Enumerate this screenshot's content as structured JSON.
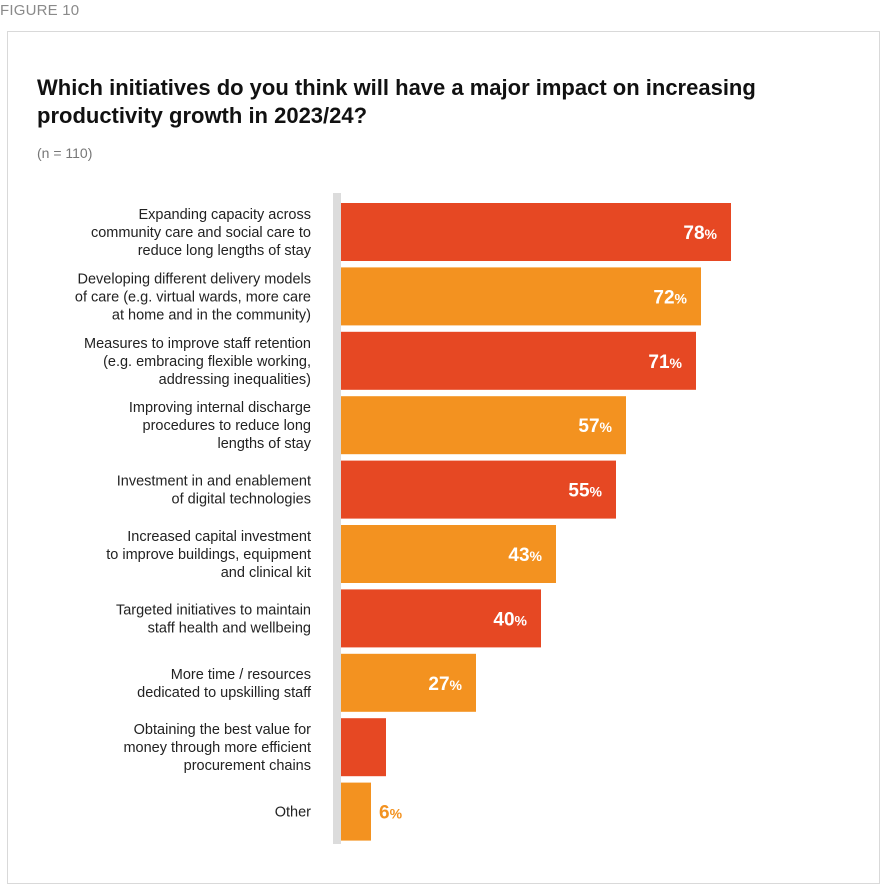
{
  "figure_label": "FIGURE 10",
  "chart_data": {
    "type": "bar",
    "orientation": "horizontal",
    "title": "Which initiatives do you think will have a major impact on increasing productivity growth in 2023/24?",
    "subtitle": "(n = 110)",
    "unit": "%",
    "xlim": [
      0,
      100
    ],
    "categories": [
      [
        "Expanding capacity across",
        "community care and social care to",
        "reduce long lengths of stay"
      ],
      [
        "Developing different delivery models",
        "of care (e.g. virtual wards, more care",
        "at home and in the community)"
      ],
      [
        "Measures to improve staff retention",
        "(e.g. embracing flexible working,",
        "addressing inequalities)"
      ],
      [
        "Improving internal discharge",
        "procedures to reduce long",
        "lengths of stay"
      ],
      [
        "Investment in and enablement",
        "of digital technologies"
      ],
      [
        "Increased capital investment",
        "to improve buildings, equipment",
        "and clinical kit"
      ],
      [
        "Targeted initiatives to maintain",
        "staff health and wellbeing"
      ],
      [
        "More time / resources",
        "dedicated to upskilling staff"
      ],
      [
        "Obtaining the best value for",
        "money through more efficient",
        "procurement chains"
      ],
      [
        "Other"
      ]
    ],
    "values": [
      78,
      72,
      71,
      57,
      55,
      43,
      40,
      27,
      9,
      6
    ],
    "colors": [
      "#e64823",
      "#f39220",
      "#e64823",
      "#f39220",
      "#e64823",
      "#f39220",
      "#e64823",
      "#f39220",
      "#e64823",
      "#f39220"
    ]
  }
}
